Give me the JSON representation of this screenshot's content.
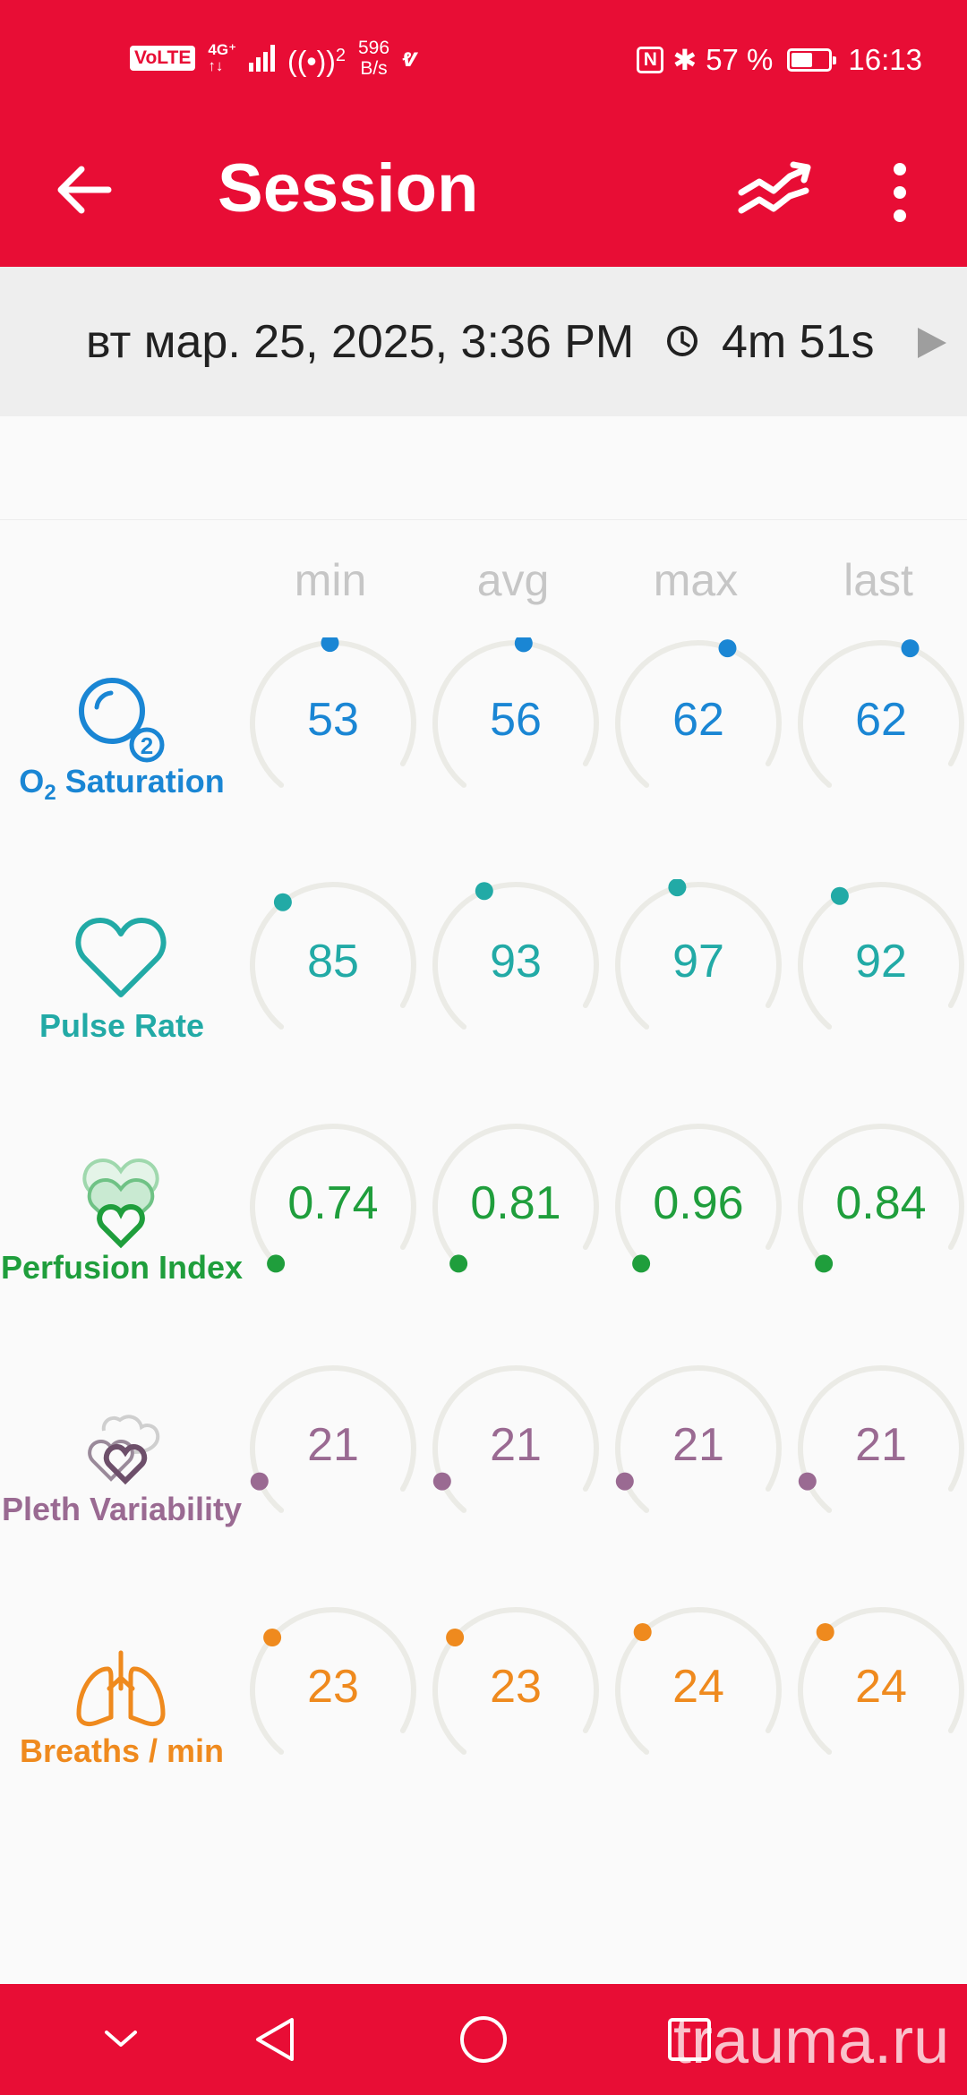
{
  "status_bar": {
    "volte": "VoLTE",
    "network_type": "4G⁺",
    "network_sub": "↑↓",
    "hotspot_count": "2",
    "speed_value": "596",
    "speed_unit": "B/s",
    "battery_percent": "57 %",
    "battery_level": 0.57,
    "time": "16:13"
  },
  "app_bar": {
    "title": "Session",
    "back_icon": "arrow-back-icon",
    "trend_icon": "trend-compare-icon",
    "menu_icon": "more-vert-icon"
  },
  "session": {
    "date": "вт мар. 25, 2025, 3:36 PM",
    "duration": "4m 51s"
  },
  "columns": [
    "min",
    "avg",
    "max",
    "last"
  ],
  "metrics": [
    {
      "label": "Saturation",
      "label_prefix": "O",
      "label_sub": "2",
      "icon": "o2-saturation-icon",
      "color": "#1a86d4",
      "values": [
        "53",
        "56",
        "62",
        "62"
      ],
      "levels": [
        0.53,
        0.56,
        0.62,
        0.62
      ]
    },
    {
      "label": "Pulse Rate",
      "icon": "heart-icon",
      "color": "#22aaa6",
      "values": [
        "85",
        "93",
        "97",
        "92"
      ],
      "levels": [
        0.39,
        0.45,
        0.48,
        0.42
      ]
    },
    {
      "label": "Perfusion Index",
      "icon": "perfusion-hearts-icon",
      "color": "#1f9e3c",
      "values": [
        "0.74",
        "0.81",
        "0.96",
        "0.84"
      ],
      "levels": [
        0.02,
        0.02,
        0.02,
        0.02
      ]
    },
    {
      "label": "Pleth Variability",
      "icon": "pleth-variability-icon",
      "color": "#9a6a92",
      "values": [
        "21",
        "21",
        "21",
        "21"
      ],
      "levels": [
        0.1,
        0.1,
        0.1,
        0.1
      ]
    },
    {
      "label": "Breaths / min",
      "icon": "lungs-icon",
      "color": "#ef8a1e",
      "values": [
        "23",
        "23",
        "24",
        "24"
      ],
      "levels": [
        0.35,
        0.35,
        0.37,
        0.37
      ]
    }
  ],
  "watermark": "trauma.ru",
  "nav": {
    "collapse_icon": "chevron-down-icon",
    "back_icon": "triangle-back-icon",
    "home_icon": "circle-home-icon",
    "recents_icon": "square-recents-icon"
  }
}
